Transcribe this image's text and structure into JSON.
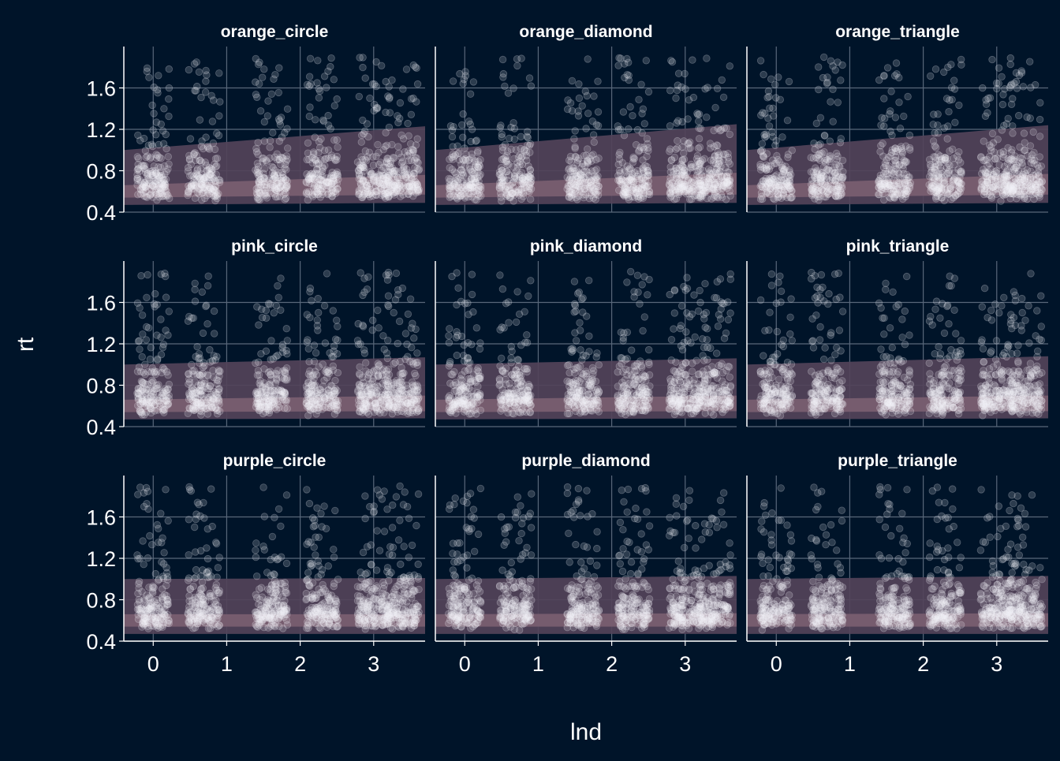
{
  "colors": {
    "background": "#001429",
    "grid": "#59677a",
    "axis_line": "#ffffff",
    "text": "#ffffff",
    "points": "#f2f2f7",
    "band_outer": "#524359",
    "band_inner": "#7a5e71"
  },
  "chart_data": {
    "type": "scatter",
    "layout": "facet-grid-3x3",
    "xlabel": "lnd",
    "ylabel": "rt",
    "xlim": [
      -0.4,
      3.7
    ],
    "ylim": [
      0.4,
      2.0
    ],
    "x_ticks": [
      "0",
      "1",
      "2",
      "3"
    ],
    "y_ticks": [
      "0.4",
      "0.8",
      "1.2",
      "1.6"
    ],
    "grid": true,
    "point_note": "semi-transparent jittered raw trials at x clusters",
    "x_clusters": [
      0.0,
      0.69,
      1.61,
      2.3,
      3.0,
      3.4
    ],
    "panels": [
      {
        "title": "orange_circle",
        "band_outer": {
          "lower": [
            0.47,
            0.49
          ],
          "upper": [
            1.0,
            1.23
          ]
        },
        "band_inner": {
          "lower": [
            0.54,
            0.57
          ],
          "upper": [
            0.66,
            0.76
          ]
        }
      },
      {
        "title": "orange_diamond",
        "band_outer": {
          "lower": [
            0.47,
            0.49
          ],
          "upper": [
            1.0,
            1.25
          ]
        },
        "band_inner": {
          "lower": [
            0.54,
            0.57
          ],
          "upper": [
            0.66,
            0.78
          ]
        }
      },
      {
        "title": "orange_triangle",
        "band_outer": {
          "lower": [
            0.47,
            0.49
          ],
          "upper": [
            1.0,
            1.24
          ]
        },
        "band_inner": {
          "lower": [
            0.54,
            0.57
          ],
          "upper": [
            0.66,
            0.77
          ]
        }
      },
      {
        "title": "pink_circle",
        "band_outer": {
          "lower": [
            0.47,
            0.48
          ],
          "upper": [
            1.0,
            1.07
          ]
        },
        "band_inner": {
          "lower": [
            0.54,
            0.55
          ],
          "upper": [
            0.66,
            0.7
          ]
        }
      },
      {
        "title": "pink_diamond",
        "band_outer": {
          "lower": [
            0.47,
            0.48
          ],
          "upper": [
            1.0,
            1.06
          ]
        },
        "band_inner": {
          "lower": [
            0.54,
            0.55
          ],
          "upper": [
            0.66,
            0.7
          ]
        }
      },
      {
        "title": "pink_triangle",
        "band_outer": {
          "lower": [
            0.47,
            0.48
          ],
          "upper": [
            1.0,
            1.08
          ]
        },
        "band_inner": {
          "lower": [
            0.54,
            0.55
          ],
          "upper": [
            0.66,
            0.7
          ]
        }
      },
      {
        "title": "purple_circle",
        "band_outer": {
          "lower": [
            0.47,
            0.47
          ],
          "upper": [
            1.0,
            1.01
          ]
        },
        "band_inner": {
          "lower": [
            0.54,
            0.54
          ],
          "upper": [
            0.66,
            0.66
          ]
        }
      },
      {
        "title": "purple_diamond",
        "band_outer": {
          "lower": [
            0.47,
            0.47
          ],
          "upper": [
            1.0,
            1.03
          ]
        },
        "band_inner": {
          "lower": [
            0.54,
            0.54
          ],
          "upper": [
            0.66,
            0.67
          ]
        }
      },
      {
        "title": "purple_triangle",
        "band_outer": {
          "lower": [
            0.47,
            0.47
          ],
          "upper": [
            1.0,
            1.03
          ]
        },
        "band_inner": {
          "lower": [
            0.54,
            0.54
          ],
          "upper": [
            0.66,
            0.67
          ]
        }
      }
    ]
  }
}
